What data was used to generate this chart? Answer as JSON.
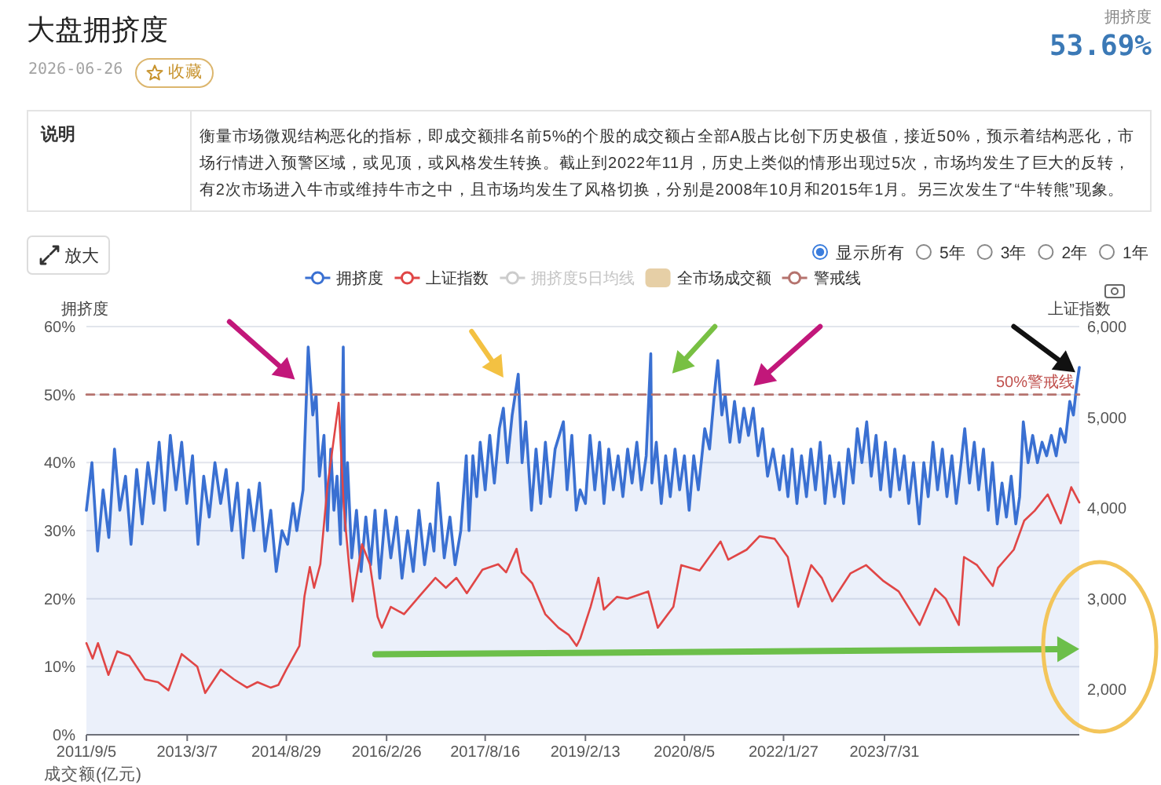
{
  "chart_data": [
    {
      "type": "other",
      "title": "大盘拥挤度",
      "subtitle": "2026-06-26",
      "annotations": [
        "收藏",
        "拥挤度",
        "53.69%",
        "说明",
        "衡量市场微观结构恶化的指标，即成交额排名前5%的个股的成交额占全部A股占比创下历史极值，接近50%，预示着结构恶化，市场行情进入预警区域，或见顶，或风格发生转换。截止到2022年11月，历史上类似的情形出现过5次，市场均发生了巨大的反转，有2次市场进入牛市或维持牛市之中，且市场均发生了风格切换，分别是2008年10月和2015年1月。另三次发生了“牛转熊”现象。"
      ]
    },
    {
      "type": "line",
      "ylabel": "拥挤度",
      "y2label": "上证指数",
      "grid": "y",
      "legend": "top",
      "xlim": [
        "2011-09-05",
        "2026-06-26"
      ],
      "xticks": [
        {
          "value": "2011-09-05",
          "label": "2011/9/5"
        },
        {
          "value": "2013-03-07",
          "label": "2013/3/7"
        },
        {
          "value": "2014-08-29",
          "label": "2014/8/29"
        },
        {
          "value": "2016-02-26",
          "label": "2016/2/26"
        },
        {
          "value": "2017-08-16",
          "label": "2017/8/16"
        },
        {
          "value": "2019-02-13",
          "label": "2019/2/13"
        },
        {
          "value": "2020-08-05",
          "label": "2020/8/5"
        },
        {
          "value": "2022-01-27",
          "label": "2022/1/27"
        },
        {
          "value": "2023-07-31",
          "label": "2023/7/31"
        }
      ],
      "ylim": [
        0,
        60
      ],
      "yticks": [
        {
          "value": 0,
          "label": "0%"
        },
        {
          "value": 10,
          "label": "10%"
        },
        {
          "value": 20,
          "label": "20%"
        },
        {
          "value": 30,
          "label": "30%"
        },
        {
          "value": 40,
          "label": "40%"
        },
        {
          "value": 50,
          "label": "50%"
        },
        {
          "value": 60,
          "label": "60%"
        }
      ],
      "y2lim": [
        1500,
        6000
      ],
      "y2ticks": [
        {
          "value": 2000,
          "label": "2,000"
        },
        {
          "value": 3000,
          "label": "3,000"
        },
        {
          "value": 4000,
          "label": "4,000"
        },
        {
          "value": 5000,
          "label": "5,000"
        },
        {
          "value": 6000,
          "label": "6,000"
        }
      ],
      "annotations": [
        "放大",
        "显示所有",
        "5年",
        "3年",
        "2年",
        "1年",
        "成交额(亿元)",
        {
          "text": "50%警戒线",
          "x": "2026-06-26",
          "y": 50
        }
      ],
      "series": [
        {
          "name": "拥挤度",
          "type": "area",
          "color": "#3a70d2",
          "x": [
            "2011-09-05",
            "2011-10-05",
            "2011-11-05",
            "2011-12-05",
            "2012-01-05",
            "2012-02-05",
            "2012-03-05",
            "2012-04-05",
            "2012-05-05",
            "2012-06-05",
            "2012-07-05",
            "2012-08-05",
            "2012-09-05",
            "2012-10-05",
            "2012-11-05",
            "2012-12-05",
            "2013-01-05",
            "2013-02-05",
            "2013-03-05",
            "2013-04-05",
            "2013-05-05",
            "2013-06-05",
            "2013-07-05",
            "2013-08-05",
            "2013-09-05",
            "2013-10-05",
            "2013-11-05",
            "2013-12-05",
            "2014-01-05",
            "2014-02-05",
            "2014-03-05",
            "2014-04-05",
            "2014-05-05",
            "2014-06-05",
            "2014-07-05",
            "2014-08-05",
            "2014-09-05",
            "2014-10-05",
            "2014-10-25",
            "2014-11-28",
            "2014-12-26",
            "2015-01-05",
            "2015-01-20",
            "2015-02-07",
            "2015-02-25",
            "2015-03-22",
            "2015-04-10",
            "2015-04-28",
            "2015-05-15",
            "2015-06-01",
            "2015-06-20",
            "2015-07-05",
            "2015-07-15",
            "2015-07-28",
            "2015-08-20",
            "2015-09-15",
            "2015-10-10",
            "2015-11-05",
            "2015-12-01",
            "2015-12-25",
            "2016-01-20",
            "2016-02-20",
            "2016-03-20",
            "2016-04-20",
            "2016-05-20",
            "2016-06-20",
            "2016-07-20",
            "2016-08-20",
            "2016-09-20",
            "2016-10-20",
            "2016-11-10",
            "2016-12-02",
            "2017-01-05",
            "2017-02-05",
            "2017-03-05",
            "2017-04-05",
            "2017-05-05",
            "2017-05-20",
            "2017-06-10",
            "2017-07-01",
            "2017-07-20",
            "2017-08-16",
            "2017-09-10",
            "2017-10-05",
            "2017-11-01",
            "2017-11-23",
            "2017-12-15",
            "2018-01-10",
            "2018-02-12",
            "2018-03-05",
            "2018-03-25",
            "2018-04-25",
            "2018-05-20",
            "2018-06-15",
            "2018-07-10",
            "2018-08-05",
            "2018-09-01",
            "2018-10-16",
            "2018-11-05",
            "2018-12-01",
            "2018-12-25",
            "2019-01-15",
            "2019-02-13",
            "2019-03-10",
            "2019-04-05",
            "2019-05-01",
            "2019-05-25",
            "2019-06-20",
            "2019-07-15",
            "2019-08-10",
            "2019-09-05",
            "2019-10-01",
            "2019-10-25",
            "2019-11-20",
            "2019-12-15",
            "2020-01-10",
            "2020-02-04",
            "2020-02-10",
            "2020-03-05",
            "2020-04-01",
            "2020-04-25",
            "2020-05-20",
            "2020-06-15",
            "2020-07-10",
            "2020-08-05",
            "2020-08-31",
            "2020-09-25",
            "2020-10-20",
            "2020-11-24",
            "2020-12-20",
            "2021-01-15",
            "2021-02-03",
            "2021-02-25",
            "2021-03-15",
            "2021-04-10",
            "2021-05-05",
            "2021-06-01",
            "2021-06-25",
            "2021-07-20",
            "2021-08-15",
            "2021-09-10",
            "2021-10-05",
            "2021-11-01",
            "2021-12-01",
            "2022-01-05",
            "2022-01-27",
            "2022-02-20",
            "2022-03-15",
            "2022-04-10",
            "2022-05-05",
            "2022-06-01",
            "2022-06-25",
            "2022-07-20",
            "2022-08-15",
            "2022-09-10",
            "2022-10-05",
            "2022-11-01",
            "2022-11-25",
            "2022-12-20",
            "2023-01-15",
            "2023-02-10",
            "2023-03-05",
            "2023-03-30",
            "2023-04-25",
            "2023-05-20",
            "2023-06-15",
            "2023-07-10",
            "2023-08-05",
            "2023-09-01",
            "2023-09-25",
            "2023-10-20",
            "2023-11-15",
            "2023-12-10",
            "2024-01-05",
            "2024-02-05",
            "2024-03-01",
            "2024-03-25",
            "2024-04-20",
            "2024-05-15",
            "2024-06-10",
            "2024-07-05",
            "2024-08-01",
            "2024-08-25",
            "2024-09-20",
            "2024-10-10",
            "2024-11-05",
            "2024-12-01",
            "2024-12-25",
            "2025-01-20",
            "2025-02-15",
            "2025-03-10",
            "2025-04-05",
            "2025-05-01",
            "2025-05-25",
            "2025-06-20",
            "2025-07-15",
            "2025-08-05",
            "2025-08-25",
            "2025-09-20",
            "2025-10-15",
            "2025-11-10",
            "2025-12-05",
            "2025-12-30",
            "2026-01-25",
            "2026-02-20",
            "2026-03-15",
            "2026-04-10",
            "2026-05-05",
            "2026-05-25",
            "2026-06-10",
            "2026-06-26"
          ],
          "values": [
            33,
            40,
            27,
            36,
            29,
            42,
            33,
            38,
            28,
            39,
            31,
            40,
            34,
            43,
            33,
            44,
            36,
            43,
            34,
            41,
            28,
            38,
            32,
            40,
            34,
            39,
            30,
            37,
            26,
            36,
            30,
            37,
            27,
            33,
            24,
            30,
            28,
            34,
            30,
            36,
            57,
            53,
            47,
            50,
            38,
            44,
            30,
            42,
            33,
            38,
            28,
            57,
            30,
            40,
            26,
            33,
            24,
            32,
            25,
            33,
            23,
            33,
            26,
            32,
            23,
            30,
            24,
            33,
            25,
            31,
            27,
            37,
            26,
            32,
            25,
            30,
            41,
            30,
            41,
            35,
            43,
            36,
            44,
            37,
            45,
            48,
            40,
            47,
            53,
            40,
            46,
            33,
            42,
            34,
            43,
            35,
            42,
            46,
            36,
            44,
            33,
            36,
            34,
            44,
            36,
            43,
            34,
            42,
            36,
            41,
            35,
            42,
            37,
            43,
            36,
            41,
            56,
            37,
            43,
            34,
            41,
            35,
            42,
            36,
            41,
            33,
            41,
            36,
            45,
            42,
            50,
            55,
            47,
            50,
            43,
            49,
            43,
            48,
            44,
            48,
            41,
            45,
            38,
            42,
            36,
            41,
            35,
            42,
            34,
            41,
            35,
            42,
            36,
            43,
            34,
            41,
            35,
            40,
            34,
            42,
            37,
            45,
            40,
            46,
            38,
            44,
            36,
            43,
            35,
            42,
            36,
            41,
            34,
            40,
            31,
            40,
            35,
            43,
            36,
            42,
            35,
            41,
            34,
            40,
            45,
            37,
            43,
            36,
            42,
            33,
            40,
            31,
            37,
            32,
            38,
            31,
            35,
            46,
            40,
            44,
            40,
            43,
            41,
            44,
            41,
            45,
            43,
            49,
            47,
            51,
            54
          ]
        },
        {
          "name": "上证指数",
          "type": "line",
          "color": "#e04646",
          "axis": "y2",
          "x": [
            "2011-09-05",
            "2011-10-09",
            "2011-11-07",
            "2012-01-03",
            "2012-02-20",
            "2012-04-26",
            "2012-07-20",
            "2012-09-29",
            "2012-11-25",
            "2013-02-05",
            "2013-05-01",
            "2013-06-13",
            "2013-09-06",
            "2013-11-17",
            "2014-01-27",
            "2014-03-25",
            "2014-06-04",
            "2014-07-17",
            "2014-08-29",
            "2014-11-08",
            "2014-12-06",
            "2015-01-04",
            "2015-01-27",
            "2015-03-02",
            "2015-04-10",
            "2015-06-10",
            "2015-07-08",
            "2015-08-05",
            "2015-08-25",
            "2015-10-15",
            "2015-11-27",
            "2016-01-08",
            "2016-01-31",
            "2016-03-20",
            "2016-05-31",
            "2016-08-24",
            "2016-11-18",
            "2017-01-14",
            "2017-03-12",
            "2017-05-08",
            "2017-08-01",
            "2017-10-26",
            "2017-12-08",
            "2018-02-03",
            "2018-03-03",
            "2018-04-29",
            "2018-07-09",
            "2018-09-19",
            "2018-11-15",
            "2018-12-27",
            "2019-01-16",
            "2019-03-13",
            "2019-04-25",
            "2019-05-24",
            "2019-08-03",
            "2019-09-29",
            "2020-01-21",
            "2020-03-13",
            "2020-06-06",
            "2020-07-19",
            "2020-10-27",
            "2021-02-18",
            "2021-04-01",
            "2021-07-10",
            "2021-09-19",
            "2021-12-10",
            "2022-02-19",
            "2022-04-17",
            "2022-06-27",
            "2022-08-23",
            "2022-10-19",
            "2023-01-27",
            "2023-04-22",
            "2023-07-22",
            "2023-10-16",
            "2024-02-07",
            "2024-05-02",
            "2024-06-28",
            "2024-09-08",
            "2024-10-06",
            "2024-12-16",
            "2025-03-12",
            "2025-04-09",
            "2025-07-04",
            "2025-08-30",
            "2025-10-26",
            "2026-01-05",
            "2026-03-17",
            "2026-05-13",
            "2026-06-26"
          ],
          "values": [
            2510,
            2340,
            2510,
            2160,
            2420,
            2370,
            2110,
            2080,
            1990,
            2390,
            2250,
            1960,
            2220,
            2110,
            2020,
            2080,
            2020,
            2050,
            2220,
            2480,
            3030,
            3350,
            3120,
            3380,
            4240,
            5160,
            4010,
            3380,
            2970,
            3600,
            3380,
            2800,
            2680,
            2910,
            2830,
            3030,
            3230,
            3120,
            3230,
            3060,
            3320,
            3380,
            3290,
            3550,
            3290,
            3170,
            2830,
            2680,
            2600,
            2480,
            2560,
            2910,
            3230,
            2880,
            3020,
            3000,
            3080,
            2680,
            2910,
            3370,
            3310,
            3630,
            3430,
            3540,
            3690,
            3660,
            3460,
            2910,
            3370,
            3230,
            2970,
            3280,
            3370,
            3200,
            3080,
            2710,
            3110,
            3000,
            2710,
            3460,
            3370,
            3140,
            3340,
            3540,
            3860,
            3970,
            4150,
            3830,
            4230,
            4060
          ]
        },
        {
          "name": "拥挤度5日均线",
          "type": "line",
          "color": "#cccccc"
        },
        {
          "name": "全市场成交额",
          "type": "bar",
          "color": "#e6cfa6"
        },
        {
          "name": "警戒线",
          "type": "line",
          "color": "#b5736e",
          "line_style": "dashed",
          "x": [
            "2011-09-05",
            "2026-06-26"
          ],
          "values": [
            50,
            50
          ]
        }
      ]
    }
  ]
}
